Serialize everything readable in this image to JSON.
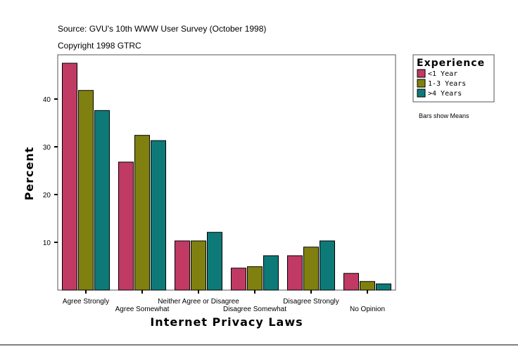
{
  "chart_data": {
    "type": "bar",
    "source": "Source: GVU's 10th WWW User Survey (October 1998)",
    "copyright": "Copyright 1998 GTRC",
    "xlabel": "Internet Privacy Laws",
    "ylabel": "Percent",
    "ylim": [
      0,
      49
    ],
    "yticks": [
      10,
      20,
      30,
      40
    ],
    "grid": false,
    "legend_title": "Experience",
    "legend_placement": "right",
    "note": "Bars show Means",
    "categories": [
      "Agree Strongly",
      "Agree Somewhat",
      "Neither Agree or Disagree",
      "Disagree Somewhat",
      "Disagree Strongly",
      "No Opinion"
    ],
    "series": [
      {
        "name": "<1 Year",
        "color": "#c03a64",
        "values": [
          47.5,
          26.8,
          10.3,
          4.6,
          7.2,
          3.5
        ]
      },
      {
        "name": "1-3 Years",
        "color": "#808010",
        "values": [
          41.8,
          32.4,
          10.3,
          4.9,
          9.0,
          1.8
        ]
      },
      {
        "name": ">4 Years",
        "color": "#0e7a78",
        "values": [
          37.6,
          31.3,
          12.1,
          7.2,
          10.3,
          1.3
        ]
      }
    ]
  }
}
